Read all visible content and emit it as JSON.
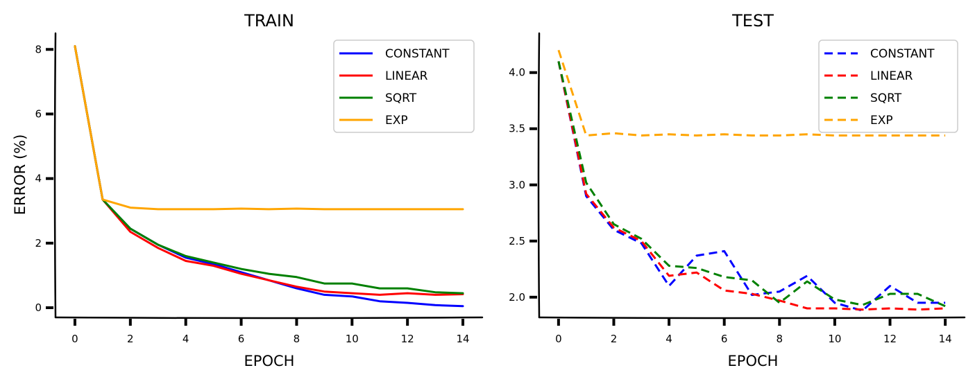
{
  "chart_data": [
    {
      "type": "line",
      "title": "TRAIN",
      "xlabel": "EPOCH",
      "ylabel": "ERROR (%)",
      "xlim": [
        -0.7,
        14.7
      ],
      "ylim": [
        -0.3,
        8.5
      ],
      "xticks": [
        0,
        2,
        4,
        6,
        8,
        10,
        12,
        14
      ],
      "yticks": [
        0,
        2,
        4,
        6,
        8
      ],
      "x": [
        0,
        1,
        2,
        3,
        4,
        5,
        6,
        7,
        8,
        9,
        10,
        11,
        12,
        13,
        14
      ],
      "line_style": "solid",
      "legend_position": "top-right",
      "series": [
        {
          "name": "CONSTANT",
          "color": "#0000ff",
          "values": [
            8.1,
            3.35,
            2.45,
            1.95,
            1.55,
            1.35,
            1.1,
            0.85,
            0.6,
            0.4,
            0.35,
            0.2,
            0.15,
            0.08,
            0.05
          ]
        },
        {
          "name": "LINEAR",
          "color": "#ff0000",
          "values": [
            8.1,
            3.35,
            2.35,
            1.85,
            1.45,
            1.3,
            1.05,
            0.85,
            0.65,
            0.5,
            0.45,
            0.4,
            0.45,
            0.4,
            0.42
          ]
        },
        {
          "name": "SQRT",
          "color": "#008000",
          "values": [
            8.1,
            3.35,
            2.45,
            1.95,
            1.6,
            1.4,
            1.2,
            1.05,
            0.95,
            0.75,
            0.75,
            0.6,
            0.6,
            0.48,
            0.45
          ]
        },
        {
          "name": "EXP",
          "color": "#ffa500",
          "values": [
            8.1,
            3.35,
            3.1,
            3.05,
            3.05,
            3.05,
            3.07,
            3.05,
            3.07,
            3.05,
            3.05,
            3.05,
            3.05,
            3.05,
            3.05
          ]
        }
      ]
    },
    {
      "type": "line",
      "title": "TEST",
      "xlabel": "EPOCH",
      "ylabel": "",
      "xlim": [
        -0.7,
        14.7
      ],
      "ylim": [
        1.82,
        4.35
      ],
      "xticks": [
        0,
        2,
        4,
        6,
        8,
        10,
        12,
        14
      ],
      "yticks": [
        2.0,
        2.5,
        3.0,
        3.5,
        4.0
      ],
      "ytick_labels": [
        "2.0",
        "2.5",
        "3.0",
        "3.5",
        "4.0"
      ],
      "x": [
        0,
        1,
        2,
        3,
        4,
        5,
        6,
        7,
        8,
        9,
        10,
        11,
        12,
        13,
        14
      ],
      "line_style": "dashed",
      "legend_position": "top-right",
      "series": [
        {
          "name": "CONSTANT",
          "color": "#0000ff",
          "values": [
            4.1,
            2.9,
            2.6,
            2.48,
            2.1,
            2.37,
            2.41,
            2.02,
            2.05,
            2.19,
            1.95,
            1.88,
            2.1,
            1.95,
            1.95
          ]
        },
        {
          "name": "LINEAR",
          "color": "#ff0000",
          "values": [
            4.1,
            2.92,
            2.62,
            2.5,
            2.19,
            2.22,
            2.06,
            2.03,
            1.97,
            1.9,
            1.9,
            1.89,
            1.9,
            1.89,
            1.9
          ]
        },
        {
          "name": "SQRT",
          "color": "#008000",
          "values": [
            4.1,
            3.02,
            2.65,
            2.52,
            2.28,
            2.26,
            2.18,
            2.15,
            1.95,
            2.14,
            1.98,
            1.93,
            2.03,
            2.03,
            1.92
          ]
        },
        {
          "name": "EXP",
          "color": "#ffa500",
          "values": [
            4.2,
            3.44,
            3.46,
            3.44,
            3.45,
            3.44,
            3.45,
            3.44,
            3.44,
            3.45,
            3.44,
            3.44,
            3.44,
            3.44,
            3.44
          ]
        }
      ]
    }
  ]
}
